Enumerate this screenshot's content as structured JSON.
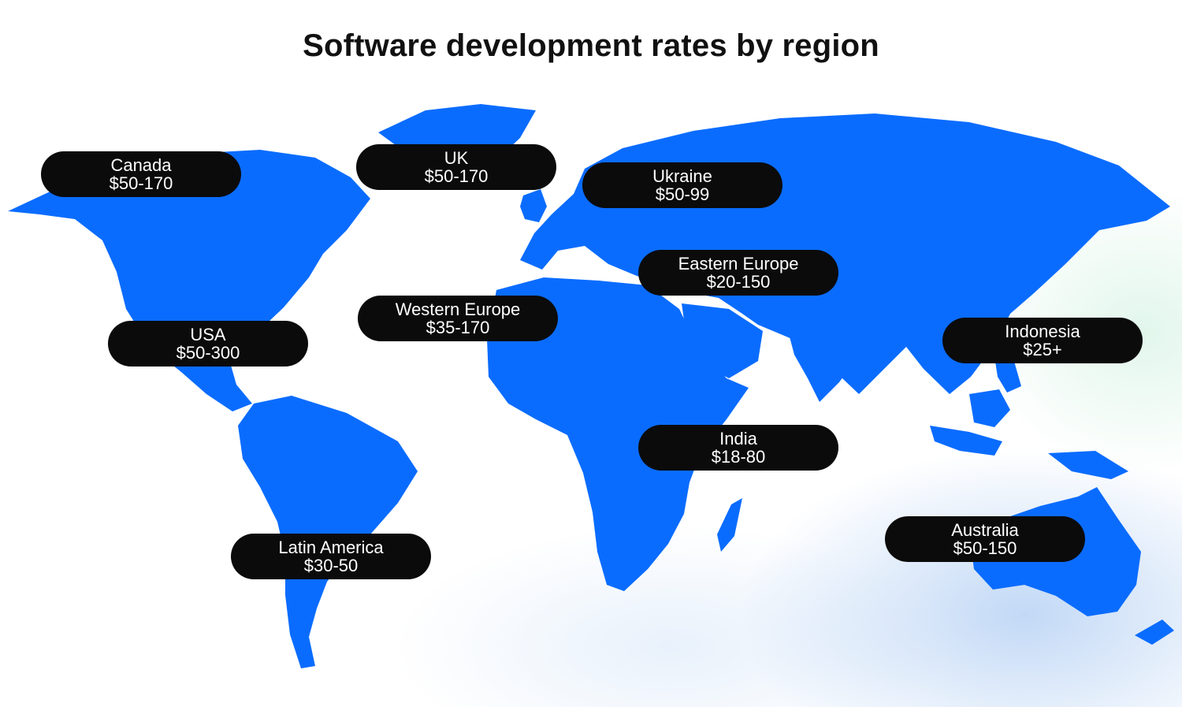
{
  "title": "Software development rates by region",
  "colors": {
    "land": "#0a6cff",
    "pill_bg": "#0b0b0b",
    "pill_text": "#ffffff"
  },
  "regions": [
    {
      "name": "Canada",
      "rate": "$50-170"
    },
    {
      "name": "UK",
      "rate": "$50-170"
    },
    {
      "name": "Ukraine",
      "rate": "$50-99"
    },
    {
      "name": "Eastern Europe",
      "rate": "$20-150"
    },
    {
      "name": "Western Europe",
      "rate": "$35-170"
    },
    {
      "name": "USA",
      "rate": "$50-300"
    },
    {
      "name": "Indonesia",
      "rate": "$25+"
    },
    {
      "name": "India",
      "rate": "$18-80"
    },
    {
      "name": "Australia",
      "rate": "$50-150"
    },
    {
      "name": "Latin America",
      "rate": "$30-50"
    }
  ]
}
